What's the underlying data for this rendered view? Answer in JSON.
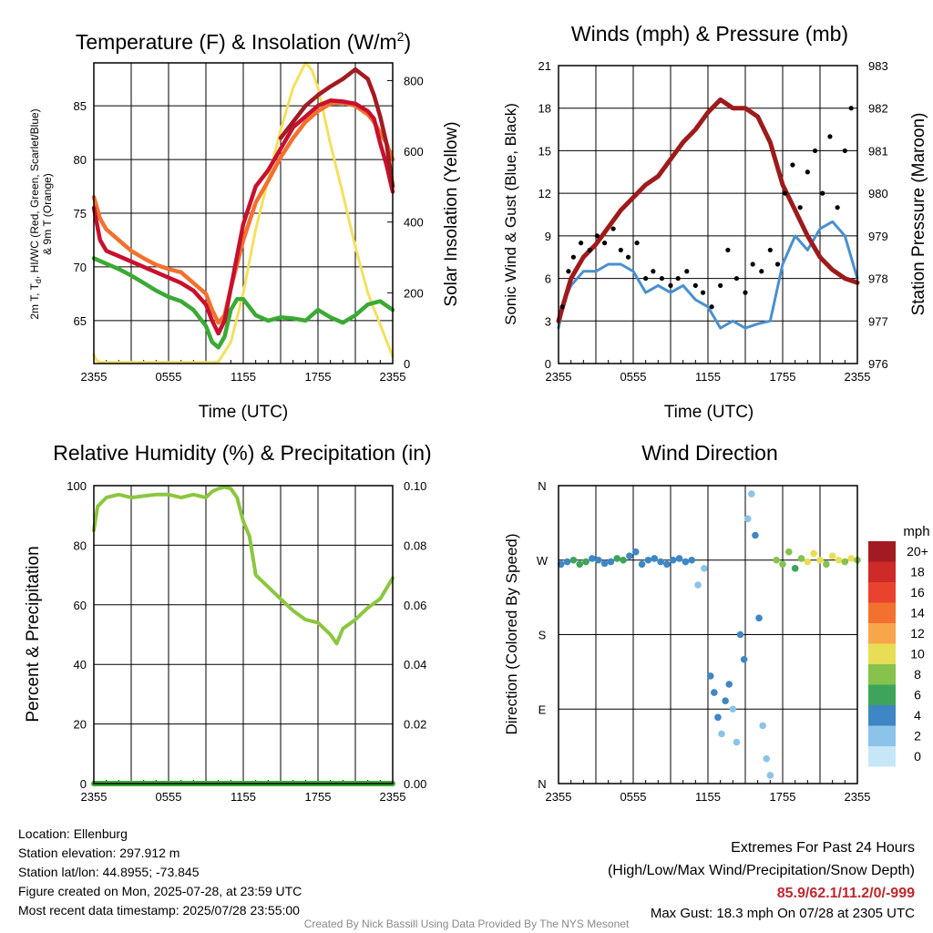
{
  "panels": {
    "temp": {
      "title": "Temperature (F) & Insolation (W/m",
      "title_sup": "2",
      "title_end": ")",
      "ylabel_left_1": "2m T, T",
      "ylabel_left_sub": "d",
      "ylabel_left_2": ", HI/WC (Red, Green, Scarlet/Blue)",
      "ylabel_left_3": "& 9m T (Orange)",
      "ylabel_right": "Solar Insolation (Yellow)",
      "xlabel": "Time (UTC)"
    },
    "wind": {
      "title": "Winds (mph) & Pressure (mb)",
      "ylabel_left": "Sonic Wind & Gust (Blue, Black)",
      "ylabel_right": "Station Pressure (Maroon)",
      "xlabel": "Time (UTC)"
    },
    "rh": {
      "title": "Relative Humidity (%) & Precipitation (in)",
      "ylabel_left": "Percent & Precipitation"
    },
    "dir": {
      "title": "Wind Direction",
      "ylabel_left": "Direction (Colored By Speed)",
      "colorbar_title": "mph",
      "colorbar_labels": [
        "20+",
        "18",
        "16",
        "14",
        "12",
        "10",
        "8",
        "6",
        "4",
        "2",
        "0"
      ],
      "colorbar_colors": [
        "#a31b22",
        "#cf2a2a",
        "#e8432e",
        "#f2712f",
        "#f7a64a",
        "#e8de55",
        "#86c24c",
        "#3fa45b",
        "#3f86c4",
        "#8cc3e8",
        "#c7e7f8"
      ]
    }
  },
  "info": {
    "location": "Location: Ellenburg",
    "elevation": "Station elevation: 297.912 m",
    "latlon": "Station lat/lon: 44.8955; -73.845",
    "created": "Figure created on Mon, 2025-07-28, at 23:59 UTC",
    "recent": "Most recent data timestamp: 2025/07/28 23:55:00"
  },
  "extremes": {
    "title": "Extremes For Past 24 Hours",
    "subtitle": "(High/Low/Max Wind/Precipitation/Snow Depth)",
    "values": "85.9/62.1/11.2/0/-999",
    "max_gust": "Max Gust: 18.3 mph On 07/28 at 2305 UTC"
  },
  "credit": "Created By Nick Bassill Using Data Provided By The NYS Mesonet",
  "chart_data": [
    {
      "type": "line",
      "title": "Temperature (F) & Insolation (W/m2)",
      "xlabel": "Time (UTC)",
      "x_ticks": [
        "2355",
        "0555",
        "1155",
        "1755",
        "2355"
      ],
      "x_hours": [
        0,
        3,
        6,
        9,
        12,
        15,
        18,
        21,
        24
      ],
      "ylim": [
        61,
        89
      ],
      "y_ticks": [
        65,
        70,
        75,
        80,
        85
      ],
      "y2lim": [
        0,
        850
      ],
      "y2_ticks": [
        0,
        200,
        400,
        600,
        800
      ],
      "series": [
        {
          "name": "2m T",
          "color": "#c8102e",
          "axis": "left",
          "x": [
            0,
            0.5,
            1,
            2,
            3,
            4,
            5,
            6,
            7,
            8,
            9,
            9.5,
            10,
            10.5,
            11,
            12,
            13,
            14,
            15,
            16,
            17,
            18,
            19,
            20,
            21,
            22,
            22.5,
            23,
            23.5,
            24
          ],
          "y": [
            75.5,
            72.5,
            71.5,
            71,
            70.5,
            70,
            69.5,
            69,
            68.5,
            67.8,
            66.5,
            65,
            63.8,
            65,
            68,
            74,
            77.5,
            79,
            81,
            83,
            84,
            85,
            85.5,
            85.4,
            85.2,
            84.5,
            83.8,
            81.5,
            79.5,
            77
          ]
        },
        {
          "name": "HI/WC",
          "color": "#a31b22",
          "axis": "left",
          "x": [
            15,
            16,
            17,
            18,
            19,
            20,
            21,
            22,
            22.5,
            23,
            23.5,
            24
          ],
          "y": [
            82,
            83.5,
            85,
            86,
            86.8,
            87.5,
            88.4,
            87.5,
            86,
            84,
            81.5,
            77.5
          ]
        },
        {
          "name": "9m T",
          "color": "#f2712f",
          "axis": "left",
          "x": [
            0,
            0.5,
            1,
            2,
            3,
            4,
            5,
            6,
            7,
            8,
            9,
            9.5,
            10,
            10.5,
            11,
            12,
            13,
            14,
            15,
            16,
            17,
            18,
            19,
            20,
            21,
            22,
            22.5,
            23,
            23.5,
            24
          ],
          "y": [
            76.5,
            74.5,
            73.5,
            72.5,
            71.5,
            70.8,
            70.2,
            69.8,
            69.5,
            68.5,
            67.5,
            66,
            64.8,
            65.5,
            68,
            72.5,
            76,
            78,
            80.2,
            82,
            83.5,
            84.5,
            85.2,
            85.3,
            85,
            84.2,
            83.5,
            82.5,
            81.5,
            80
          ]
        },
        {
          "name": "2m Td",
          "color": "#3aaa35",
          "axis": "left",
          "x": [
            0,
            1,
            2,
            3,
            4,
            5,
            6,
            7,
            8,
            9,
            9.5,
            10,
            10.5,
            11,
            11.5,
            12,
            13,
            14,
            15,
            16,
            17,
            18,
            19,
            20,
            21,
            22,
            23,
            24
          ],
          "y": [
            70.8,
            70.3,
            69.8,
            69.2,
            68.5,
            67.8,
            67.2,
            66.8,
            66,
            64.5,
            63,
            62.5,
            63.5,
            66,
            67,
            67,
            65.5,
            65,
            65.3,
            65.2,
            65,
            66,
            65.3,
            64.8,
            65.5,
            66.5,
            66.8,
            66
          ]
        },
        {
          "name": "Solar",
          "color": "#f4e05e",
          "axis": "right",
          "x": [
            0,
            0.2,
            0.5,
            9.5,
            10,
            11,
            12,
            13,
            14,
            15,
            16,
            17,
            17.5,
            18,
            19,
            20,
            21,
            22,
            23,
            24
          ],
          "y": [
            25,
            10,
            3,
            3,
            5,
            60,
            200,
            380,
            520,
            660,
            780,
            850,
            830,
            780,
            620,
            480,
            330,
            200,
            110,
            20
          ]
        }
      ]
    },
    {
      "type": "line",
      "title": "Winds (mph) & Pressure (mb)",
      "xlabel": "Time (UTC)",
      "x_ticks": [
        "2355",
        "0555",
        "1155",
        "1755",
        "2355"
      ],
      "ylim": [
        0,
        21
      ],
      "y_ticks": [
        0,
        3,
        6,
        9,
        12,
        15,
        18,
        21
      ],
      "y2lim": [
        976,
        983
      ],
      "y2_ticks": [
        976,
        977,
        978,
        979,
        980,
        981,
        982,
        983
      ],
      "series": [
        {
          "name": "Station Pressure",
          "color": "#9e1b1b",
          "axis": "right",
          "x": [
            0,
            0.5,
            1,
            2,
            3,
            4,
            5,
            6,
            7,
            8,
            9,
            10,
            11,
            12,
            13,
            13.5,
            14,
            15,
            16,
            17,
            18,
            19,
            20,
            21,
            22,
            23,
            24
          ],
          "y": [
            977,
            977.5,
            978,
            978.5,
            978.8,
            979.2,
            979.6,
            979.9,
            980.2,
            980.4,
            980.8,
            981.2,
            981.5,
            981.9,
            982.2,
            982.1,
            982,
            982,
            981.8,
            981.2,
            980.2,
            979.6,
            979,
            978.5,
            978.2,
            978,
            977.9
          ]
        },
        {
          "name": "Sonic Wind",
          "color": "#4a90cf",
          "axis": "left",
          "x": [
            0,
            0.5,
            1,
            2,
            3,
            4,
            5,
            6,
            7,
            8,
            9,
            10,
            11,
            12,
            13,
            14,
            15,
            16,
            17,
            18,
            19,
            20,
            21,
            22,
            23,
            24
          ],
          "y": [
            2.5,
            4.5,
            5.5,
            6.5,
            6.5,
            7,
            7,
            6.5,
            5,
            5.5,
            5,
            5.5,
            4.5,
            4,
            2.5,
            3,
            2.5,
            2.8,
            3,
            7,
            9,
            8,
            9.5,
            10,
            9,
            6
          ]
        },
        {
          "name": "Gust",
          "color": "#000000",
          "axis": "left",
          "style": "dots",
          "x": [
            0.3,
            0.8,
            1.2,
            1.8,
            2.5,
            3.1,
            3.7,
            4.4,
            5.0,
            5.6,
            6.3,
            7.0,
            7.6,
            8.3,
            9.0,
            9.6,
            10.3,
            11.0,
            11.6,
            12.3,
            13.0,
            13.6,
            14.3,
            15.0,
            15.6,
            16.3,
            17.0,
            17.6,
            18.2,
            18.8,
            19.4,
            20.0,
            20.6,
            21.2,
            21.8,
            22.4,
            23.0,
            23.5
          ],
          "y": [
            4,
            6.5,
            7.5,
            8.5,
            8,
            9,
            8.5,
            9.5,
            8,
            7.5,
            8.5,
            6,
            6.5,
            6,
            5.5,
            6,
            6.5,
            5.5,
            5,
            4,
            5.5,
            8,
            6,
            5,
            7,
            6.5,
            8,
            7,
            12,
            14,
            11,
            13.5,
            15,
            12,
            16,
            11,
            15,
            18
          ]
        }
      ]
    },
    {
      "type": "line",
      "title": "Relative Humidity (%) & Precipitation (in)",
      "x_ticks": [
        "2355",
        "0555",
        "1155",
        "1755",
        "2355"
      ],
      "ylim": [
        0,
        100
      ],
      "y_ticks": [
        0,
        20,
        40,
        60,
        80,
        100
      ],
      "y2lim": [
        0,
        0.1
      ],
      "y2_ticks": [
        "0.00",
        "0.02",
        "0.04",
        "0.06",
        "0.08",
        "0.10"
      ],
      "series": [
        {
          "name": "RH",
          "color": "#8cc63f",
          "axis": "left",
          "x": [
            0,
            0.3,
            1,
            2,
            3,
            4,
            5,
            6,
            7,
            8,
            9,
            9.5,
            10,
            10.5,
            11,
            11.5,
            12,
            12.5,
            13,
            14,
            15,
            16,
            17,
            18,
            19,
            19.5,
            20,
            21,
            22,
            23,
            24
          ],
          "y": [
            85,
            93,
            96,
            97,
            96,
            96.5,
            97,
            97,
            96,
            97,
            96,
            98,
            99,
            99.5,
            99,
            96,
            88,
            83,
            70,
            66,
            62,
            58,
            55,
            54,
            50,
            47,
            52,
            55,
            59,
            62,
            69
          ]
        },
        {
          "name": "Precipitation",
          "color": "#3aaa35",
          "axis": "right",
          "x": [
            0,
            24
          ],
          "y": [
            0,
            0
          ]
        }
      ]
    },
    {
      "type": "scatter",
      "title": "Wind Direction",
      "x_ticks": [
        "2355",
        "0555",
        "1155",
        "1755",
        "2355"
      ],
      "ylim": [
        0,
        360
      ],
      "y_ticks": [
        "N",
        "E",
        "S",
        "W",
        "N"
      ],
      "series": [
        {
          "name": "Direction",
          "x": [
            0.2,
            0.7,
            1.2,
            1.7,
            2.2,
            2.7,
            3.2,
            3.7,
            4.2,
            4.7,
            5.2,
            5.7,
            6.2,
            6.7,
            7.2,
            7.7,
            8.2,
            8.7,
            9.2,
            9.7,
            10.2,
            10.7,
            11.2,
            11.7,
            12.2,
            12.5,
            12.8,
            13.1,
            13.4,
            13.7,
            14.0,
            14.3,
            14.6,
            14.9,
            15.2,
            15.5,
            15.8,
            16.1,
            16.4,
            16.7,
            17.0,
            17.5,
            18.0,
            18.5,
            19.0,
            19.5,
            20.0,
            20.5,
            21.0,
            21.5,
            22.0,
            22.5,
            23.0,
            23.5,
            24.0
          ],
          "y": [
            265,
            268,
            270,
            265,
            268,
            272,
            270,
            266,
            268,
            272,
            270,
            275,
            280,
            265,
            270,
            272,
            268,
            265,
            270,
            272,
            268,
            270,
            240,
            260,
            130,
            110,
            80,
            60,
            100,
            120,
            90,
            50,
            180,
            150,
            320,
            350,
            300,
            200,
            70,
            30,
            10,
            270,
            265,
            280,
            260,
            272,
            268,
            278,
            270,
            265,
            275,
            270,
            268,
            272,
            270
          ],
          "speed": [
            3,
            4,
            5,
            6,
            5,
            4,
            3,
            4,
            4,
            5,
            6,
            4,
            3,
            4,
            4,
            3,
            4,
            3,
            4,
            3,
            4,
            3,
            2,
            1,
            3,
            3,
            4,
            2,
            3,
            3,
            2,
            2,
            3,
            3,
            1,
            1,
            3,
            3,
            2,
            2,
            1,
            7,
            8,
            7,
            6,
            8,
            9,
            10,
            9,
            8,
            10,
            9,
            8,
            9,
            7
          ]
        }
      ]
    }
  ]
}
